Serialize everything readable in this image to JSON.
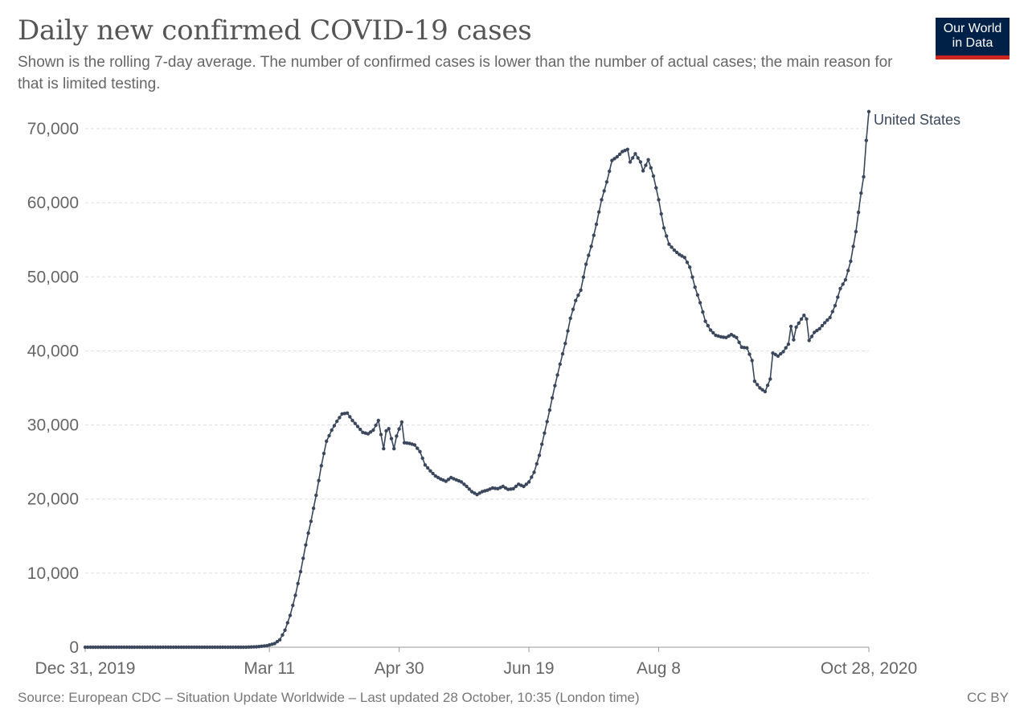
{
  "title": "Daily new confirmed COVID-19 cases",
  "subtitle": "Shown is the rolling 7-day average. The number of confirmed cases is lower than the number of actual cases; the main reason for that is limited testing.",
  "logo": {
    "line1": "Our World",
    "line2": "in Data"
  },
  "footer": {
    "source": "Source: European CDC – Situation Update Worldwide – Last updated 28 October, 10:35 (London time)",
    "license": "CC BY"
  },
  "colors": {
    "series": "#3a475c",
    "grid": "#dddddd",
    "logo_bg": "#002147",
    "logo_bar": "#ce261e"
  },
  "chart_data": {
    "type": "line",
    "title": "Daily new confirmed COVID-19 cases",
    "xlabel": "",
    "ylabel": "",
    "ylim": [
      0,
      70000
    ],
    "grid": true,
    "legend": "right-end label",
    "y_ticks": [
      {
        "value": 0,
        "label": "0"
      },
      {
        "value": 10000,
        "label": "10,000"
      },
      {
        "value": 20000,
        "label": "20,000"
      },
      {
        "value": 30000,
        "label": "30,000"
      },
      {
        "value": 40000,
        "label": "40,000"
      },
      {
        "value": 50000,
        "label": "50,000"
      },
      {
        "value": 60000,
        "label": "60,000"
      },
      {
        "value": 70000,
        "label": "70,000"
      }
    ],
    "x_ticks": [
      {
        "date": "2019-12-31",
        "label": "Dec 31, 2019"
      },
      {
        "date": "2020-03-11",
        "label": "Mar 11"
      },
      {
        "date": "2020-04-30",
        "label": "Apr 30"
      },
      {
        "date": "2020-06-19",
        "label": "Jun 19"
      },
      {
        "date": "2020-08-08",
        "label": "Aug 8"
      },
      {
        "date": "2020-10-28",
        "label": "Oct 28, 2020"
      }
    ],
    "x_range": [
      "2019-12-31",
      "2020-10-28"
    ],
    "series": [
      {
        "name": "United States",
        "x_start": "2019-12-31",
        "x_end": "2020-10-28",
        "points": [
          [
            "2019-12-31",
            0
          ],
          [
            "2020-03-01",
            0
          ],
          [
            "2020-03-06",
            50
          ],
          [
            "2020-03-10",
            200
          ],
          [
            "2020-03-13",
            500
          ],
          [
            "2020-03-15",
            1000
          ],
          [
            "2020-03-17",
            2300
          ],
          [
            "2020-03-19",
            4300
          ],
          [
            "2020-03-21",
            7000
          ],
          [
            "2020-03-23",
            10200
          ],
          [
            "2020-03-25",
            13800
          ],
          [
            "2020-03-27",
            17000
          ],
          [
            "2020-03-29",
            20500
          ],
          [
            "2020-03-31",
            24500
          ],
          [
            "2020-04-02",
            27800
          ],
          [
            "2020-04-04",
            29300
          ],
          [
            "2020-04-06",
            30500
          ],
          [
            "2020-04-08",
            31500
          ],
          [
            "2020-04-10",
            31600
          ],
          [
            "2020-04-12",
            30600
          ],
          [
            "2020-04-14",
            29800
          ],
          [
            "2020-04-16",
            29000
          ],
          [
            "2020-04-18",
            28800
          ],
          [
            "2020-04-20",
            29300
          ],
          [
            "2020-04-22",
            30600
          ],
          [
            "2020-04-24",
            26800
          ],
          [
            "2020-04-25",
            29200
          ],
          [
            "2020-04-26",
            29500
          ],
          [
            "2020-04-28",
            26800
          ],
          [
            "2020-04-29",
            28500
          ],
          [
            "2020-05-01",
            30400
          ],
          [
            "2020-05-02",
            27600
          ],
          [
            "2020-05-04",
            27500
          ],
          [
            "2020-05-06",
            27300
          ],
          [
            "2020-05-08",
            26400
          ],
          [
            "2020-05-10",
            24600
          ],
          [
            "2020-05-12",
            23800
          ],
          [
            "2020-05-14",
            23100
          ],
          [
            "2020-05-16",
            22700
          ],
          [
            "2020-05-18",
            22400
          ],
          [
            "2020-05-20",
            22900
          ],
          [
            "2020-05-22",
            22600
          ],
          [
            "2020-05-24",
            22300
          ],
          [
            "2020-05-26",
            21700
          ],
          [
            "2020-05-28",
            21000
          ],
          [
            "2020-05-30",
            20600
          ],
          [
            "2020-06-01",
            21000
          ],
          [
            "2020-06-03",
            21200
          ],
          [
            "2020-06-05",
            21500
          ],
          [
            "2020-06-07",
            21400
          ],
          [
            "2020-06-09",
            21700
          ],
          [
            "2020-06-11",
            21300
          ],
          [
            "2020-06-13",
            21400
          ],
          [
            "2020-06-15",
            22000
          ],
          [
            "2020-06-17",
            21700
          ],
          [
            "2020-06-19",
            22300
          ],
          [
            "2020-06-21",
            23600
          ],
          [
            "2020-06-23",
            25900
          ],
          [
            "2020-06-25",
            28900
          ],
          [
            "2020-06-27",
            32000
          ],
          [
            "2020-06-29",
            35300
          ],
          [
            "2020-07-01",
            38200
          ],
          [
            "2020-07-03",
            41000
          ],
          [
            "2020-07-05",
            44400
          ],
          [
            "2020-07-07",
            46800
          ],
          [
            "2020-07-09",
            48200
          ],
          [
            "2020-07-11",
            51700
          ],
          [
            "2020-07-13",
            54100
          ],
          [
            "2020-07-15",
            57100
          ],
          [
            "2020-07-17",
            60400
          ],
          [
            "2020-07-19",
            62800
          ],
          [
            "2020-07-21",
            65700
          ],
          [
            "2020-07-23",
            66200
          ],
          [
            "2020-07-25",
            66900
          ],
          [
            "2020-07-27",
            67200
          ],
          [
            "2020-07-28",
            65500
          ],
          [
            "2020-07-30",
            66600
          ],
          [
            "2020-08-01",
            65500
          ],
          [
            "2020-08-02",
            64300
          ],
          [
            "2020-08-04",
            65800
          ],
          [
            "2020-08-06",
            63600
          ],
          [
            "2020-08-08",
            60400
          ],
          [
            "2020-08-10",
            56600
          ],
          [
            "2020-08-12",
            54400
          ],
          [
            "2020-08-14",
            53600
          ],
          [
            "2020-08-16",
            53000
          ],
          [
            "2020-08-18",
            52600
          ],
          [
            "2020-08-20",
            51300
          ],
          [
            "2020-08-22",
            48600
          ],
          [
            "2020-08-24",
            46500
          ],
          [
            "2020-08-26",
            44000
          ],
          [
            "2020-08-28",
            42800
          ],
          [
            "2020-08-30",
            42100
          ],
          [
            "2020-09-01",
            41900
          ],
          [
            "2020-09-03",
            41800
          ],
          [
            "2020-09-05",
            42200
          ],
          [
            "2020-09-07",
            41800
          ],
          [
            "2020-09-09",
            40500
          ],
          [
            "2020-09-11",
            40400
          ],
          [
            "2020-09-13",
            38700
          ],
          [
            "2020-09-14",
            35900
          ],
          [
            "2020-09-16",
            35000
          ],
          [
            "2020-09-18",
            34500
          ],
          [
            "2020-09-20",
            36200
          ],
          [
            "2020-09-21",
            39700
          ],
          [
            "2020-09-23",
            39300
          ],
          [
            "2020-09-25",
            39900
          ],
          [
            "2020-09-27",
            40900
          ],
          [
            "2020-09-28",
            43300
          ],
          [
            "2020-09-29",
            41500
          ],
          [
            "2020-09-30",
            43200
          ],
          [
            "2020-10-02",
            44300
          ],
          [
            "2020-10-03",
            44800
          ],
          [
            "2020-10-04",
            44300
          ],
          [
            "2020-10-05",
            41400
          ],
          [
            "2020-10-07",
            42500
          ],
          [
            "2020-10-09",
            43000
          ],
          [
            "2020-10-11",
            43800
          ],
          [
            "2020-10-13",
            44500
          ],
          [
            "2020-10-15",
            46100
          ],
          [
            "2020-10-17",
            48400
          ],
          [
            "2020-10-19",
            49600
          ],
          [
            "2020-10-21",
            52100
          ],
          [
            "2020-10-23",
            56100
          ],
          [
            "2020-10-25",
            61300
          ],
          [
            "2020-10-26",
            63500
          ],
          [
            "2020-10-27",
            68400
          ],
          [
            "2020-10-28",
            72300
          ]
        ]
      }
    ]
  }
}
